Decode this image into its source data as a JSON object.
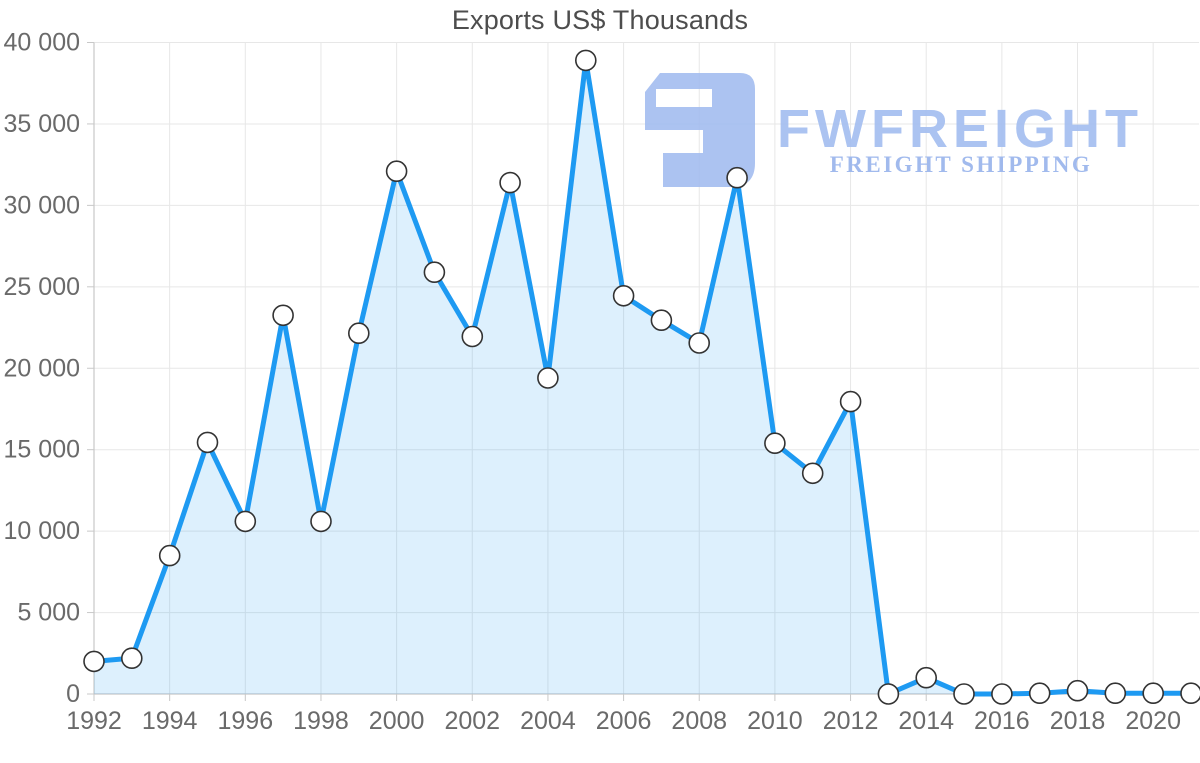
{
  "title": "Exports US$ Thousands",
  "watermark": {
    "brand": "FWFREIGHT",
    "tagline": "FREIGHT SHIPPING",
    "logo_icon": "fwfreight-mark",
    "mark_color": "#9db8ee",
    "brand_color": "#a3bdf0",
    "tagline_color": "#97b3ec"
  },
  "chart_data": {
    "type": "area",
    "title": "Exports US$ Thousands",
    "xlabel": "",
    "ylabel": "",
    "x": [
      1992,
      1993,
      1994,
      1995,
      1996,
      1997,
      1998,
      1999,
      2000,
      2001,
      2002,
      2003,
      2004,
      2005,
      2006,
      2007,
      2008,
      2009,
      2010,
      2011,
      2012,
      2013,
      2014,
      2015,
      2016,
      2017,
      2018,
      2019,
      2020,
      2021
    ],
    "values": [
      2000,
      2200,
      8500,
      15450,
      10600,
      23250,
      10600,
      22150,
      32100,
      25900,
      21950,
      31400,
      19400,
      38900,
      24450,
      22950,
      21550,
      31700,
      15400,
      13550,
      17950,
      0,
      1000,
      0,
      0,
      50,
      200,
      50,
      50,
      50
    ],
    "ylim": [
      0,
      40000
    ],
    "y_tick_step": 5000,
    "y_tick_labels": [
      "0",
      "5 000",
      "10 000",
      "15 000",
      "20 000",
      "25 000",
      "30 000",
      "35 000",
      "40 000"
    ],
    "x_tick_step": 2,
    "x_tick_labels": [
      "1992",
      "1994",
      "1996",
      "1998",
      "2000",
      "2002",
      "2004",
      "2006",
      "2008",
      "2010",
      "2012",
      "2014",
      "2016",
      "2018",
      "2020"
    ],
    "grid": true,
    "legend": "none",
    "marker": "circle",
    "colors": {
      "line": "#1e9af2",
      "fill": "rgba(30,154,242,0.15)",
      "marker_fill": "#ffffff",
      "marker_stroke": "#333333",
      "grid": "#e7e7e7",
      "axis": "#c8c8c8",
      "label": "#6a6a6a",
      "title": "#4d4d4d"
    }
  }
}
